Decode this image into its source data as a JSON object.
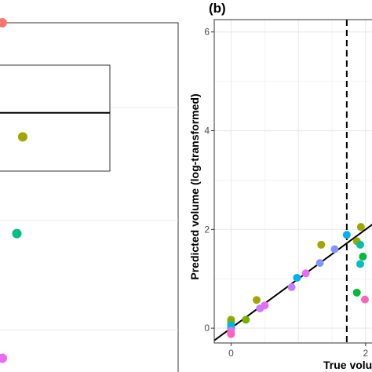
{
  "colors": {
    "grid": "#ebebeb",
    "panel_border": "#333333",
    "fit_line": "#000000",
    "threshold_line": "#000000"
  },
  "chart_data": [
    {
      "type": "scatter",
      "panel": "left",
      "points": [
        {
          "x": 0.0,
          "y": 1.0,
          "color": "#f8766d"
        },
        {
          "x": 0.14,
          "y": 0.677,
          "color": "#a3a500"
        },
        {
          "x": 0.1,
          "y": 0.403,
          "color": "#00bf7d"
        },
        {
          "x": 0.0,
          "y": 0.05,
          "color": "#e76bf3"
        }
      ],
      "boxplot_visible": {
        "q1": 0.58,
        "median": 0.745,
        "q3": 0.88
      }
    },
    {
      "type": "scatter",
      "panel_tag": "(b)",
      "xlabel": "True volu",
      "ylabel": "Predicted volume (log-transformed)",
      "x_ticks": [
        "0",
        "2"
      ],
      "y_ticks": [
        "0",
        "2",
        "4",
        "6"
      ],
      "xlim": [
        -0.25,
        2.2
      ],
      "ylim": [
        -0.3,
        6.25
      ],
      "threshold_x": 1.72,
      "fit_line": {
        "intercept": 0.0,
        "slope": 1.0
      },
      "points": [
        {
          "x": 0.0,
          "y": 0.17,
          "color": "#a3a500"
        },
        {
          "x": 0.0,
          "y": 0.12,
          "color": "#7cae00"
        },
        {
          "x": 0.0,
          "y": 0.06,
          "color": "#00bfc4"
        },
        {
          "x": 0.0,
          "y": 0.0,
          "color": "#00b0f6"
        },
        {
          "x": 0.0,
          "y": -0.05,
          "color": "#c77cff"
        },
        {
          "x": 0.0,
          "y": -0.09,
          "color": "#e76bf3"
        },
        {
          "x": 0.0,
          "y": -0.12,
          "color": "#ff62bc"
        },
        {
          "x": 0.22,
          "y": 0.17,
          "color": "#7cae00"
        },
        {
          "x": 0.38,
          "y": 0.57,
          "color": "#a3a500"
        },
        {
          "x": 0.43,
          "y": 0.4,
          "color": "#c77cff"
        },
        {
          "x": 0.5,
          "y": 0.46,
          "color": "#e76bf3"
        },
        {
          "x": 0.9,
          "y": 0.83,
          "color": "#c77cff"
        },
        {
          "x": 0.98,
          "y": 1.02,
          "color": "#00b0f6"
        },
        {
          "x": 1.11,
          "y": 1.11,
          "color": "#e76bf3"
        },
        {
          "x": 1.32,
          "y": 1.32,
          "color": "#8494ff"
        },
        {
          "x": 1.34,
          "y": 1.69,
          "color": "#a3a500"
        },
        {
          "x": 1.54,
          "y": 1.6,
          "color": "#8494ff"
        },
        {
          "x": 1.72,
          "y": 1.89,
          "color": "#00b0f6"
        },
        {
          "x": 1.87,
          "y": 1.76,
          "color": "#a3a500"
        },
        {
          "x": 1.92,
          "y": 1.69,
          "color": "#00c1a3"
        },
        {
          "x": 1.93,
          "y": 2.05,
          "color": "#a3a500"
        },
        {
          "x": 1.96,
          "y": 1.45,
          "color": "#00ba38"
        },
        {
          "x": 1.92,
          "y": 1.3,
          "color": "#00bfc4"
        },
        {
          "x": 1.87,
          "y": 0.72,
          "color": "#00ba38"
        },
        {
          "x": 1.99,
          "y": 0.58,
          "color": "#ff62bc"
        }
      ]
    }
  ]
}
